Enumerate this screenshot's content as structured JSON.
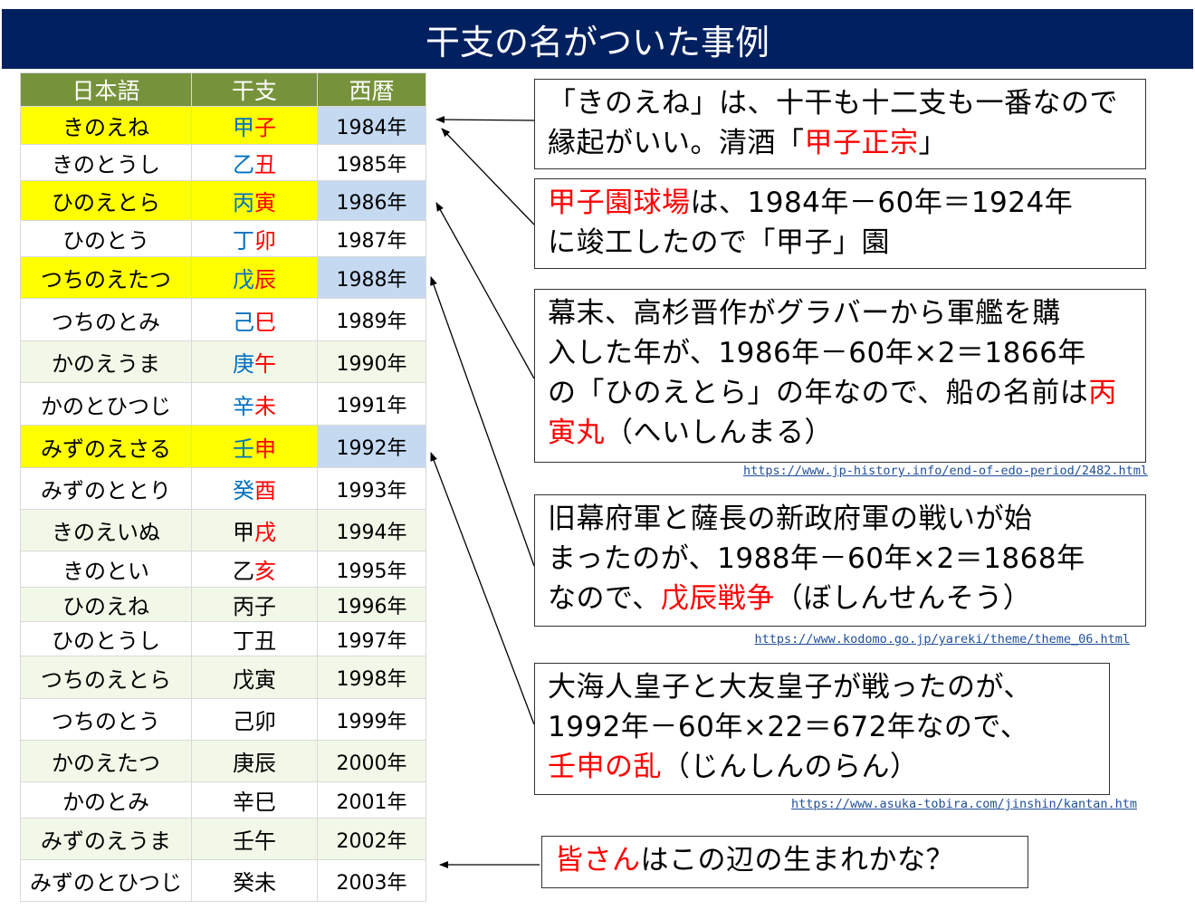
{
  "title": "干支の名がついた事例",
  "table": {
    "headers": [
      "日本語",
      "干支",
      "西暦"
    ],
    "rows": [
      {
        "jp": "きのえね",
        "k1": "甲",
        "k1c": "blue",
        "k2": "子",
        "k2c": "red",
        "year": "1984年",
        "hl": true,
        "h": 42
      },
      {
        "jp": "きのとうし",
        "k1": "乙",
        "k1c": "blue",
        "k2": "丑",
        "k2c": "red",
        "year": "1985年",
        "hl": false,
        "h": 40
      },
      {
        "jp": "ひのえとら",
        "k1": "丙",
        "k1c": "blue",
        "k2": "寅",
        "k2c": "red",
        "year": "1986年",
        "hl": true,
        "h": 44
      },
      {
        "jp": "ひのとう",
        "k1": "丁",
        "k1c": "blue",
        "k2": "卯",
        "k2c": "red",
        "year": "1987年",
        "hl": false,
        "h": 40
      },
      {
        "jp": "つちのえたつ",
        "k1": "戊",
        "k1c": "blue",
        "k2": "辰",
        "k2c": "red",
        "year": "1988年",
        "hl": true,
        "h": 46
      },
      {
        "jp": "つちのとみ",
        "k1": "己",
        "k1c": "blue",
        "k2": "巳",
        "k2c": "red",
        "year": "1989年",
        "hl": false,
        "h": 47
      },
      {
        "jp": "かのえうま",
        "k1": "庚",
        "k1c": "blue",
        "k2": "午",
        "k2c": "red",
        "year": "1990年",
        "hl": false,
        "h": 46
      },
      {
        "jp": "かのとひつじ",
        "k1": "辛",
        "k1c": "blue",
        "k2": "未",
        "k2c": "red",
        "year": "1991年",
        "hl": false,
        "h": 47
      },
      {
        "jp": "みずのえさる",
        "k1": "壬",
        "k1c": "blue",
        "k2": "申",
        "k2c": "red",
        "year": "1992年",
        "hl": true,
        "h": 47
      },
      {
        "jp": "みずのととり",
        "k1": "癸",
        "k1c": "blue",
        "k2": "酉",
        "k2c": "red",
        "year": "1993年",
        "hl": false,
        "h": 46
      },
      {
        "jp": "きのえいぬ",
        "k1": "甲",
        "k1c": "black",
        "k2": "戌",
        "k2c": "red",
        "year": "1994年",
        "hl": false,
        "h": 46
      },
      {
        "jp": "きのとい",
        "k1": "乙",
        "k1c": "black",
        "k2": "亥",
        "k2c": "red",
        "year": "1995年",
        "hl": false,
        "h": 40
      },
      {
        "jp": "ひのえね",
        "k1": "丙",
        "k1c": "black",
        "k2": "子",
        "k2c": "black",
        "year": "1996年",
        "hl": false,
        "h": 38
      },
      {
        "jp": "ひのとうし",
        "k1": "丁",
        "k1c": "black",
        "k2": "丑",
        "k2c": "black",
        "year": "1997年",
        "hl": false,
        "h": 38
      },
      {
        "jp": "つちのえとら",
        "k1": "戊",
        "k1c": "black",
        "k2": "寅",
        "k2c": "black",
        "year": "1998年",
        "hl": false,
        "h": 47
      },
      {
        "jp": "つちのとう",
        "k1": "己",
        "k1c": "black",
        "k2": "卯",
        "k2c": "black",
        "year": "1999年",
        "hl": false,
        "h": 46
      },
      {
        "jp": "かのえたつ",
        "k1": "庚",
        "k1c": "black",
        "k2": "辰",
        "k2c": "black",
        "year": "2000年",
        "hl": false,
        "h": 46
      },
      {
        "jp": "かのとみ",
        "k1": "辛",
        "k1c": "black",
        "k2": "巳",
        "k2c": "black",
        "year": "2001年",
        "hl": false,
        "h": 40
      },
      {
        "jp": "みずのえうま",
        "k1": "壬",
        "k1c": "black",
        "k2": "午",
        "k2c": "black",
        "year": "2002年",
        "hl": false,
        "h": 46
      },
      {
        "jp": "みずのとひつじ",
        "k1": "癸",
        "k1c": "black",
        "k2": "未",
        "k2c": "black",
        "year": "2003年",
        "hl": false,
        "h": 46
      }
    ]
  },
  "notes": {
    "kinoene": {
      "line1": "「きのえね」は、十干も十二支も一番なので",
      "line2a": "縁起がいい。清酒「",
      "line2red": "甲子正宗",
      "line2b": "」"
    },
    "koshien": {
      "red": "甲子園球場",
      "line1": "は、1984年－60年＝1924年",
      "line2": "に竣工したので「甲子」園"
    },
    "heiin": {
      "line1": "幕末、高杉晋作がグラバーから軍艦を購",
      "line2": "入した年が、1986年－60年×2＝1866年",
      "line3a": "の「ひのえとら」の年なので、船の名前は",
      "line3red": "丙",
      "line4red": "寅丸",
      "line4b": "（へいしんまる）",
      "url": "https://www.jp-history.info/end-of-edo-period/2482.html"
    },
    "boshin": {
      "line1": "旧幕府軍と薩長の新政府軍の戦いが始",
      "line2": "まったのが、1988年－60年×2＝1868年",
      "line3a": "なので、",
      "line3red": "戊辰戦争",
      "line3b": "（ぼしんせんそう）",
      "url": "https://www.kodomo.go.jp/yareki/theme/theme_06.html"
    },
    "jinshin": {
      "line1": "大海人皇子と大友皇子が戦ったのが、",
      "line2": "1992年－60年×22＝672年なので、",
      "line3red": "壬申の乱",
      "line3b": "（じんしんのらん）",
      "url": "https://www.asuka-tobira.com/jinshin/kantan.htm"
    },
    "minasan": {
      "red": "皆さん",
      "rest": "はこの辺の生まれかな？"
    }
  },
  "colors": {
    "title_bg": "#002060",
    "header_bg": "#76933c",
    "highlight": "#ffff00",
    "year_highlight": "#c5d9f1",
    "kan_blue": "#0070c0",
    "kan_red": "#ff0000",
    "note_red": "#ff0000"
  }
}
